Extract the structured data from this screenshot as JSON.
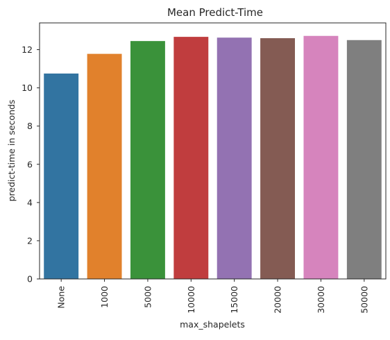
{
  "chart_data": {
    "type": "bar",
    "title": "Mean Predict-Time",
    "xlabel": "max_shapelets",
    "ylabel": "predict-time in seconds",
    "categories": [
      "None",
      "1000",
      "5000",
      "10000",
      "15000",
      "20000",
      "30000",
      "50000"
    ],
    "values": [
      10.75,
      11.78,
      12.45,
      12.67,
      12.63,
      12.6,
      12.72,
      12.5
    ],
    "colors": [
      "#3274a1",
      "#e1812c",
      "#3a923a",
      "#c03d3e",
      "#9372b2",
      "#845b53",
      "#d684bd",
      "#7f7f7f"
    ],
    "yticks": [
      0,
      2,
      4,
      6,
      8,
      10,
      12
    ],
    "ylim": [
      0,
      13.4
    ],
    "grid": false,
    "legend": "none"
  }
}
